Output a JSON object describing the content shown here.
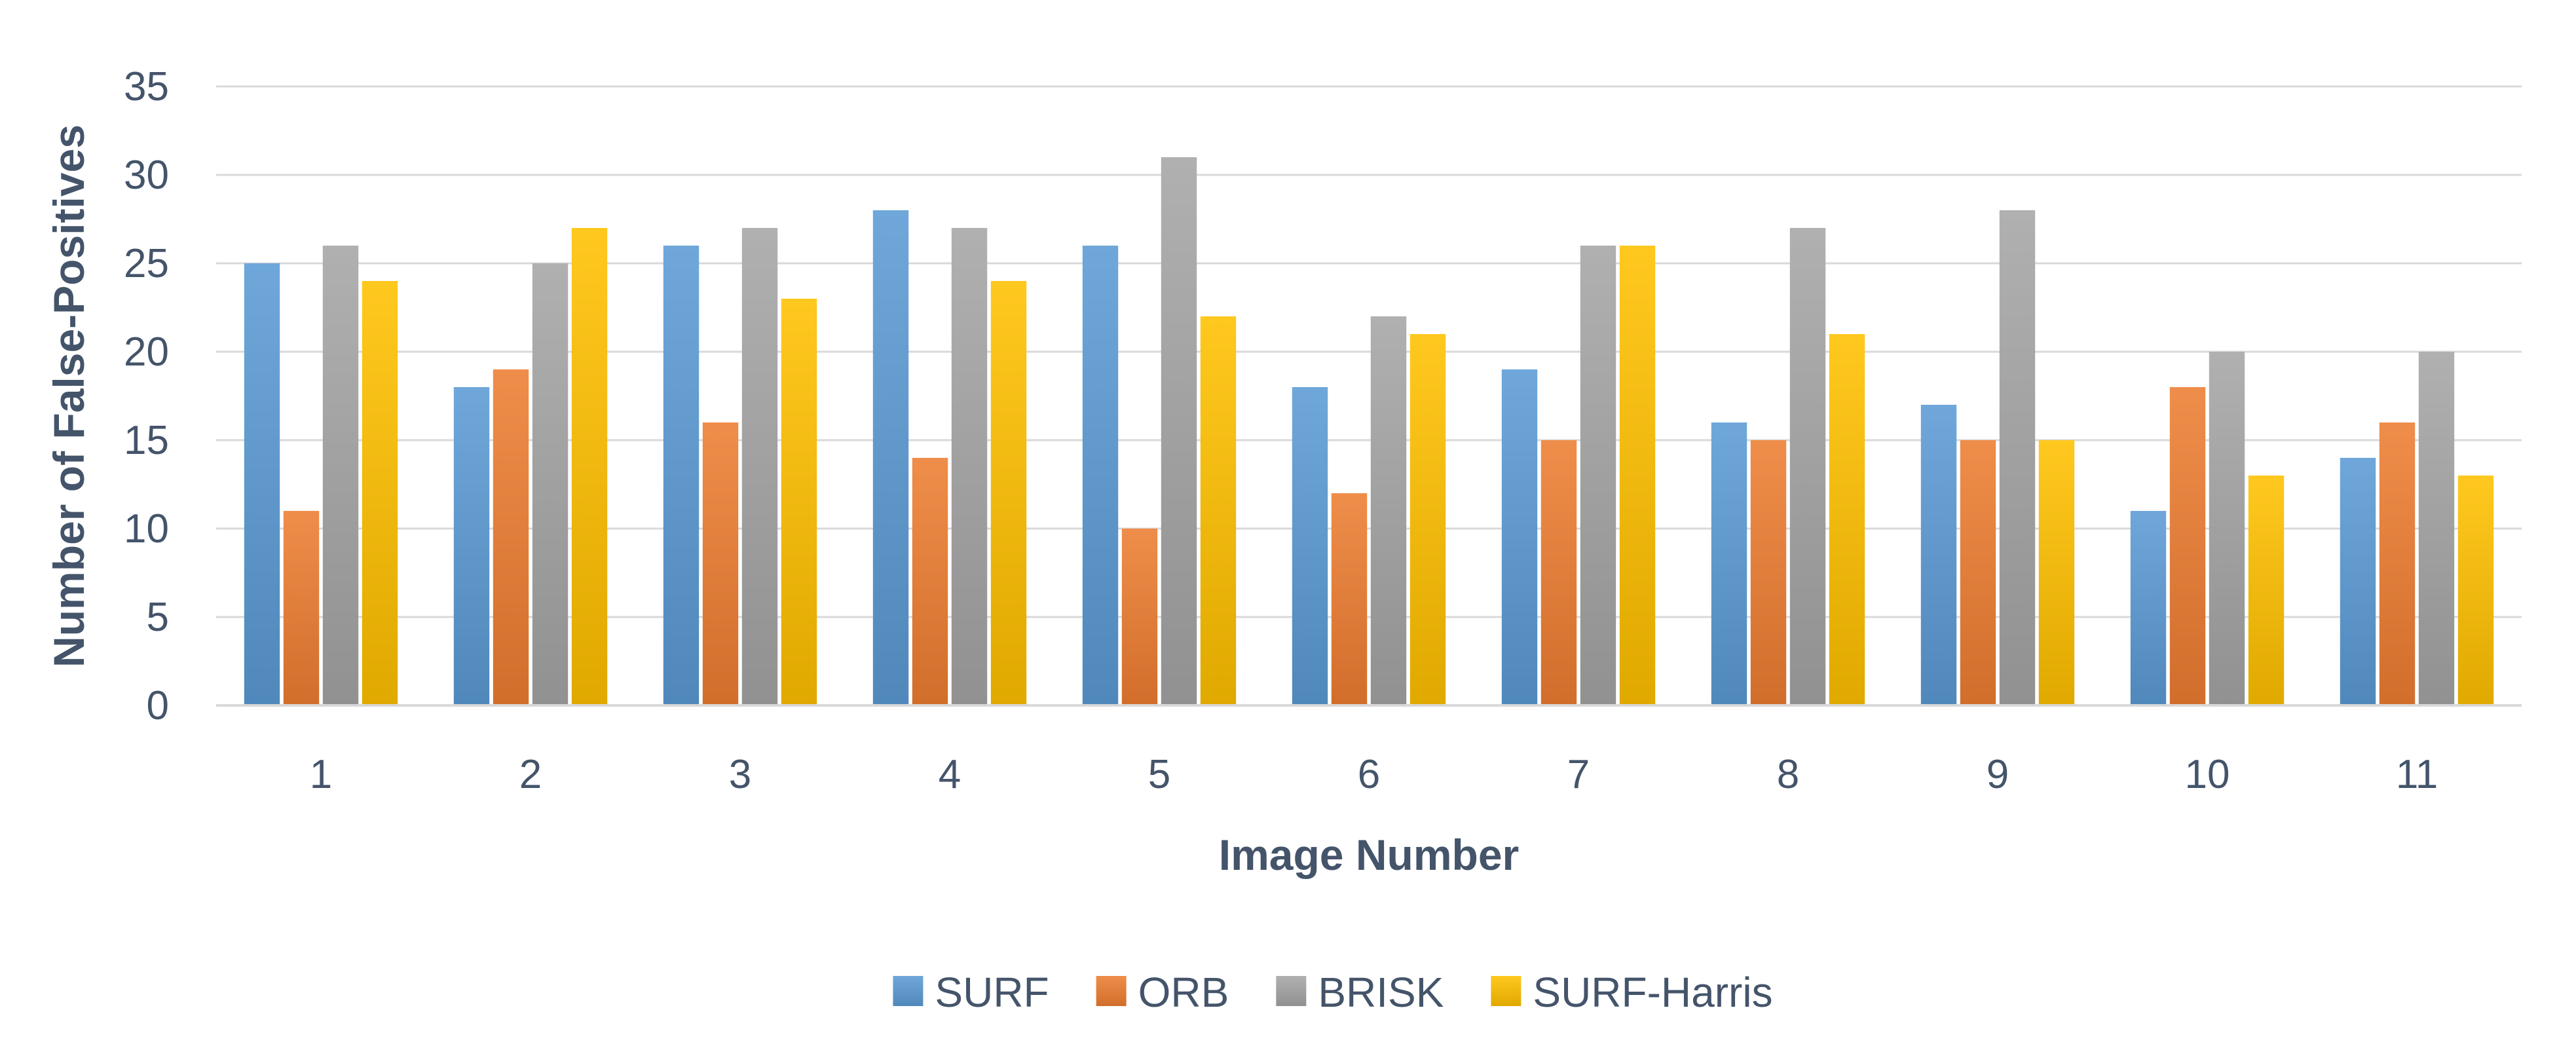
{
  "chart_data": {
    "type": "bar",
    "title": "",
    "xlabel": "Image Number",
    "ylabel": "Number of False-Positives",
    "categories": [
      "1",
      "2",
      "3",
      "4",
      "5",
      "6",
      "7",
      "8",
      "9",
      "10",
      "11"
    ],
    "series": [
      {
        "name": "SURF",
        "color": "#5B9BD5",
        "values": [
          25,
          18,
          26,
          28,
          26,
          18,
          19,
          16,
          17,
          11,
          14
        ]
      },
      {
        "name": "ORB",
        "color": "#ED7D31",
        "values": [
          11,
          19,
          16,
          14,
          10,
          12,
          15,
          15,
          15,
          18,
          16
        ]
      },
      {
        "name": "BRISK",
        "color": "#A5A5A5",
        "values": [
          26,
          25,
          27,
          27,
          31,
          22,
          26,
          27,
          28,
          20,
          20
        ]
      },
      {
        "name": "SURF-Harris",
        "color": "#FFC000",
        "values": [
          24,
          27,
          23,
          24,
          22,
          21,
          26,
          21,
          15,
          13,
          13
        ]
      }
    ],
    "ylim": [
      0,
      35
    ],
    "yticks": [
      "0",
      "5",
      "10",
      "15",
      "20",
      "25",
      "30",
      "35"
    ],
    "grid": true,
    "legend_position": "bottom"
  }
}
